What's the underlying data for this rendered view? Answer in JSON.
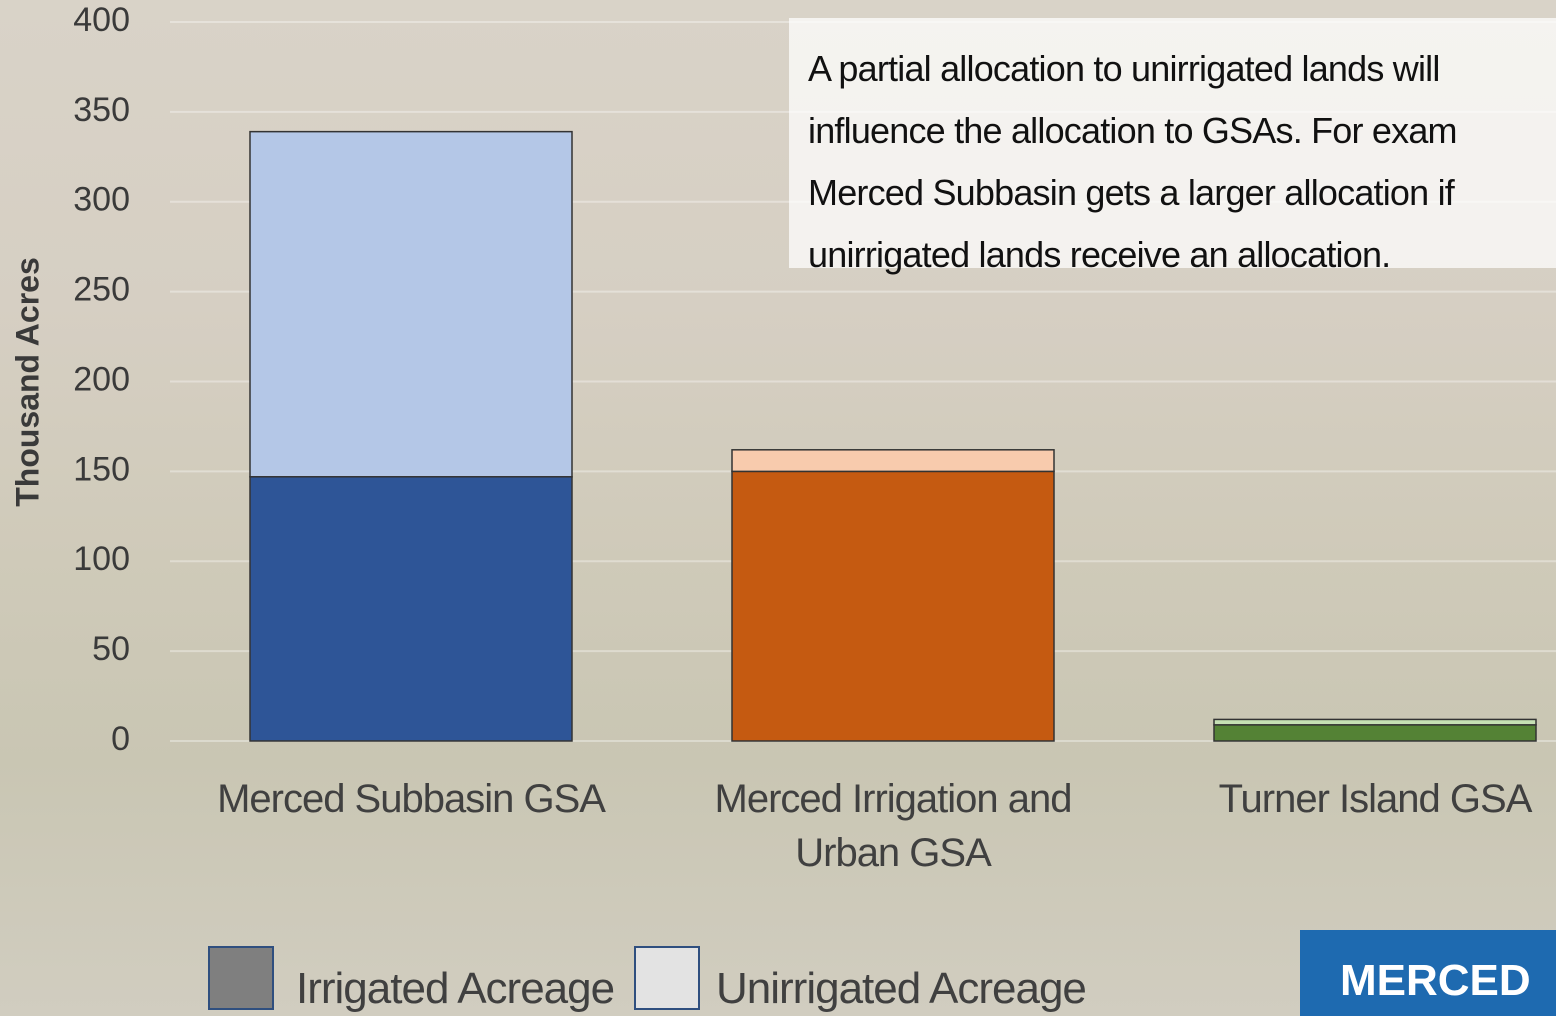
{
  "chart_data": {
    "type": "stacked-bar",
    "y_label": "Thousand Acres",
    "categories": [
      "Merced Subbasin GSA",
      "Merced Irrigation and Urban GSA",
      "Turner Island GSA"
    ],
    "series": [
      {
        "name": "Irrigated Acreage",
        "color": "#7f7f7f",
        "colors": [
          "#2e5597",
          "#c55a11",
          "#548235"
        ],
        "values": [
          147,
          150,
          9
        ]
      },
      {
        "name": "Unirrigated Acreage",
        "color": "#e3e3e3",
        "colors": [
          "#b4c7e7",
          "#f8cbad",
          "#c5e0b4"
        ],
        "values": [
          192,
          12,
          3
        ]
      }
    ],
    "ylim": [
      0,
      400
    ],
    "yticks": [
      0,
      50,
      100,
      150,
      200,
      250,
      300,
      350,
      400
    ],
    "grid": true,
    "annotation": [
      "A partial allocation to unirrigated lands will",
      "influence the allocation to GSAs. For exam",
      "Merced Subbasin gets a larger allocation if",
      "unirrigated lands receive an allocation."
    ],
    "logo": "MERCED"
  }
}
